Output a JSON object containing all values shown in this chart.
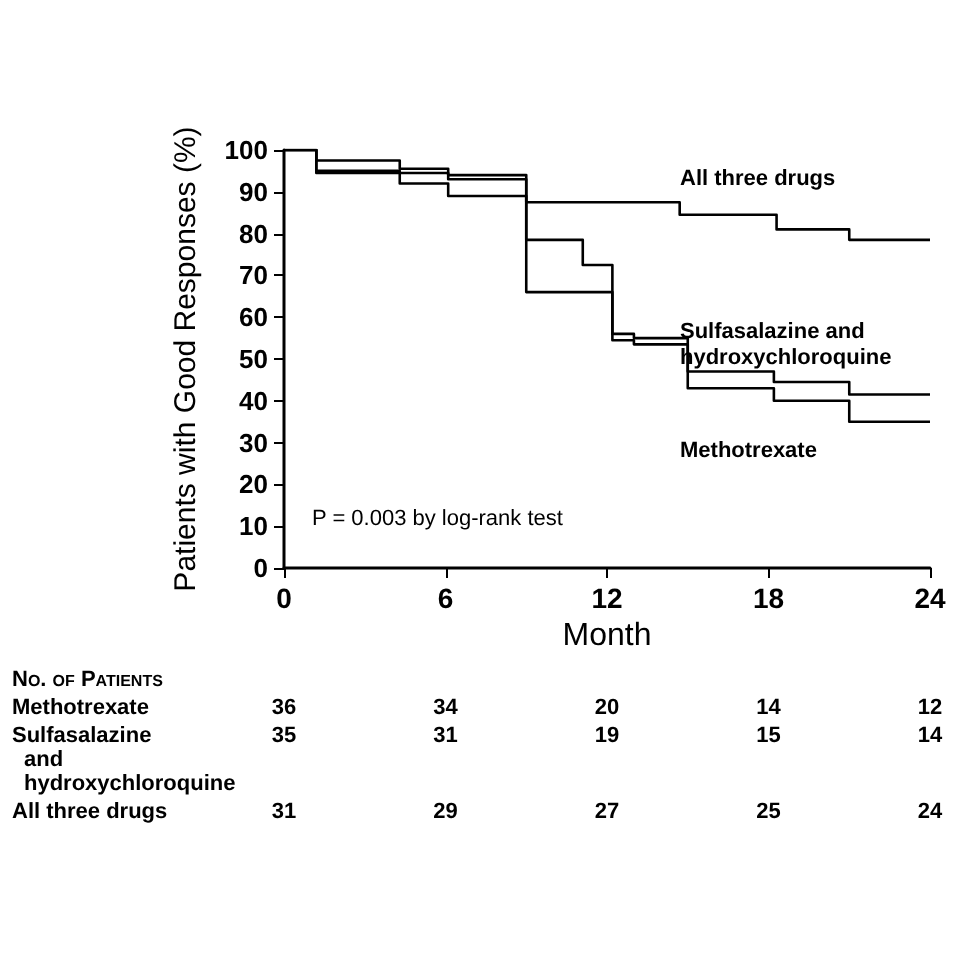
{
  "chart_data": {
    "type": "step",
    "xlabel": "Month",
    "ylabel": "Patients with Good Responses (%)",
    "xlim": [
      0,
      24
    ],
    "xticks": [
      0,
      6,
      12,
      18,
      24
    ],
    "ylim": [
      0,
      100
    ],
    "yticks": [
      0,
      10,
      20,
      30,
      40,
      50,
      60,
      70,
      80,
      90,
      100
    ],
    "grid": false,
    "legend": false,
    "marker": "none",
    "line_style": "solid",
    "series": [
      {
        "name": "All three drugs",
        "color": "#000000",
        "x": [
          0,
          1.2,
          4.3,
          6.1,
          9,
          14.7,
          18.3,
          21,
          24
        ],
        "values": [
          100,
          97.5,
          95.5,
          94,
          87.5,
          84.5,
          81,
          78.5,
          78.5
        ]
      },
      {
        "name": "Sulfasalazine and hydroxychloroquine",
        "color": "#000000",
        "x": [
          0,
          1.2,
          4.3,
          6.1,
          9,
          11.1,
          12.2,
          13,
          15,
          18.2,
          21,
          24
        ],
        "values": [
          100,
          95,
          94.5,
          93,
          78.5,
          72.5,
          56,
          55,
          47,
          44.5,
          41.5,
          41.5
        ]
      },
      {
        "name": "Methotrexate",
        "color": "#000000",
        "x": [
          0,
          1.2,
          4.3,
          6.1,
          9,
          12.2,
          13,
          15,
          18.2,
          21,
          24
        ],
        "values": [
          100,
          94.5,
          92,
          89,
          66,
          54.5,
          53.5,
          43,
          40,
          35,
          35
        ]
      }
    ],
    "annotations": [
      "P = 0.003 by log-rank test",
      "No. of Patients",
      "Methotrexate",
      "36",
      "34",
      "20",
      "14",
      "12",
      "Sulfasalazine and hydroxychloroquine",
      "35",
      "31",
      "19",
      "15",
      "14",
      "All three drugs",
      "31",
      "29",
      "27",
      "25",
      "24"
    ]
  }
}
